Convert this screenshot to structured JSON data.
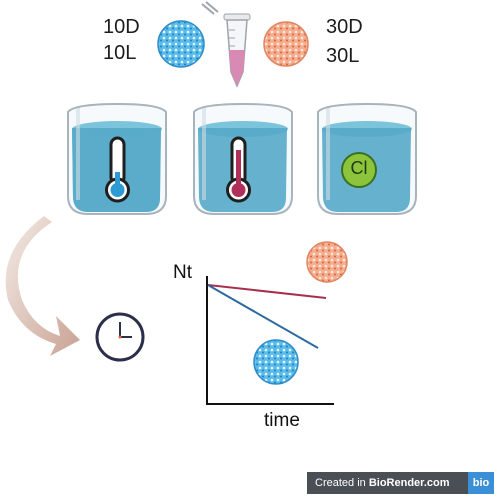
{
  "labels": {
    "left_top": "10D",
    "left_bottom": "10L",
    "right_top": "30D",
    "right_bottom": "30L",
    "chlorine": "Cl",
    "y_axis": "Nt",
    "x_axis": "time"
  },
  "badge": {
    "prefix": "Created in ",
    "brand": "BioRender.com",
    "logo": "bio"
  },
  "colors": {
    "blue_sphere": "#3a9ad9",
    "orange_sphere": "#f0a080",
    "water": "#5ab0cf",
    "cold_bulb": "#2c9ad3",
    "hot_bulb": "#b0305a",
    "chlorine_green": "#8cc43c",
    "line_red": "#a8304e",
    "line_blue": "#2c6aa0",
    "arrow": "#d6bcb0"
  }
}
